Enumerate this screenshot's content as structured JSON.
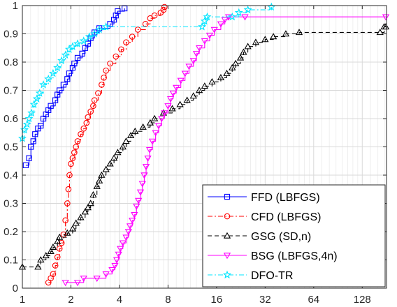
{
  "chart_data": {
    "type": "line",
    "title": "",
    "xlabel": "",
    "ylabel": "",
    "x_scale": "log2",
    "xlim": [
      1,
      181
    ],
    "ylim": [
      0,
      1
    ],
    "grid": true,
    "legend_position": "bottom-right",
    "xticks": [
      1,
      2,
      4,
      8,
      16,
      32,
      64,
      128
    ],
    "xtick_labels": [
      "1",
      "2",
      "4",
      "8",
      "16",
      "32",
      "64",
      "128"
    ],
    "yticks": [
      0,
      0.1,
      0.2,
      0.3,
      0.4,
      0.5,
      0.6,
      0.7,
      0.8,
      0.9,
      1
    ],
    "ytick_labels": [
      "0",
      "0.1",
      "0.2",
      "0.3",
      "0.4",
      "0.5",
      "0.6",
      "0.7",
      "0.8",
      "0.9",
      "1"
    ],
    "series": [
      {
        "name": "FFD (LBFGS)",
        "color": "#0000ff",
        "dash": "solid",
        "marker": "square",
        "points": [
          [
            1.05,
            0.435
          ],
          [
            1.1,
            0.46
          ],
          [
            1.13,
            0.5
          ],
          [
            1.17,
            0.52
          ],
          [
            1.2,
            0.545
          ],
          [
            1.25,
            0.565
          ],
          [
            1.3,
            0.575
          ],
          [
            1.35,
            0.6
          ],
          [
            1.4,
            0.615
          ],
          [
            1.45,
            0.63
          ],
          [
            1.5,
            0.645
          ],
          [
            1.6,
            0.665
          ],
          [
            1.65,
            0.685
          ],
          [
            1.7,
            0.7
          ],
          [
            1.8,
            0.72
          ],
          [
            1.9,
            0.74
          ],
          [
            1.95,
            0.76
          ],
          [
            2.05,
            0.78
          ],
          [
            2.1,
            0.795
          ],
          [
            2.2,
            0.815
          ],
          [
            2.35,
            0.83
          ],
          [
            2.45,
            0.85
          ],
          [
            2.55,
            0.865
          ],
          [
            2.65,
            0.885
          ],
          [
            2.8,
            0.905
          ],
          [
            3.0,
            0.92
          ],
          [
            3.5,
            0.935
          ],
          [
            3.7,
            0.95
          ],
          [
            3.8,
            0.965
          ],
          [
            3.9,
            0.98
          ],
          [
            4.3,
            0.99
          ]
        ]
      },
      {
        "name": "CFD (LBFGS)",
        "color": "#ff0000",
        "dash": "dashdot",
        "marker": "circle",
        "points": [
          [
            1.45,
            0.02
          ],
          [
            1.5,
            0.035
          ],
          [
            1.55,
            0.05
          ],
          [
            1.6,
            0.08
          ],
          [
            1.65,
            0.11
          ],
          [
            1.7,
            0.14
          ],
          [
            1.75,
            0.16
          ],
          [
            1.8,
            0.19
          ],
          [
            1.85,
            0.24
          ],
          [
            1.9,
            0.3
          ],
          [
            1.93,
            0.35
          ],
          [
            1.96,
            0.4
          ],
          [
            2.0,
            0.44
          ],
          [
            2.05,
            0.46
          ],
          [
            2.1,
            0.48
          ],
          [
            2.15,
            0.5
          ],
          [
            2.2,
            0.52
          ],
          [
            2.3,
            0.545
          ],
          [
            2.4,
            0.565
          ],
          [
            2.5,
            0.585
          ],
          [
            2.55,
            0.605
          ],
          [
            2.65,
            0.625
          ],
          [
            2.75,
            0.645
          ],
          [
            2.8,
            0.665
          ],
          [
            2.95,
            0.69
          ],
          [
            3.1,
            0.72
          ],
          [
            3.2,
            0.745
          ],
          [
            3.3,
            0.77
          ],
          [
            3.5,
            0.795
          ],
          [
            3.8,
            0.82
          ],
          [
            4.1,
            0.845
          ],
          [
            4.4,
            0.87
          ],
          [
            4.8,
            0.89
          ],
          [
            5.2,
            0.915
          ],
          [
            5.8,
            0.935
          ],
          [
            6.2,
            0.955
          ],
          [
            6.6,
            0.965
          ],
          [
            7.2,
            0.975
          ],
          [
            7.5,
            0.985
          ],
          [
            7.6,
            0.995
          ]
        ]
      },
      {
        "name": "GSG (SD,n)",
        "color": "#000000",
        "dash": "dashed",
        "marker": "triangle-up",
        "points": [
          [
            1,
            0.075
          ],
          [
            1.25,
            0.075
          ],
          [
            1.3,
            0.1
          ],
          [
            1.4,
            0.115
          ],
          [
            1.5,
            0.13
          ],
          [
            1.55,
            0.145
          ],
          [
            1.65,
            0.165
          ],
          [
            1.7,
            0.18
          ],
          [
            1.9,
            0.195
          ],
          [
            2.05,
            0.21
          ],
          [
            2.15,
            0.23
          ],
          [
            2.3,
            0.25
          ],
          [
            2.45,
            0.27
          ],
          [
            2.55,
            0.285
          ],
          [
            2.65,
            0.3
          ],
          [
            2.75,
            0.33
          ],
          [
            2.9,
            0.36
          ],
          [
            3.0,
            0.38
          ],
          [
            3.1,
            0.4
          ],
          [
            3.3,
            0.42
          ],
          [
            3.5,
            0.44
          ],
          [
            3.7,
            0.46
          ],
          [
            3.9,
            0.48
          ],
          [
            4.2,
            0.5
          ],
          [
            4.4,
            0.52
          ],
          [
            4.7,
            0.54
          ],
          [
            5.0,
            0.555
          ],
          [
            5.6,
            0.57
          ],
          [
            6.2,
            0.585
          ],
          [
            6.6,
            0.6
          ],
          [
            7.5,
            0.62
          ],
          [
            8.5,
            0.635
          ],
          [
            9.5,
            0.65
          ],
          [
            10.5,
            0.665
          ],
          [
            11.5,
            0.68
          ],
          [
            12.5,
            0.7
          ],
          [
            13.5,
            0.715
          ],
          [
            15,
            0.73
          ],
          [
            17,
            0.745
          ],
          [
            18.5,
            0.76
          ],
          [
            20,
            0.78
          ],
          [
            21,
            0.795
          ],
          [
            22.5,
            0.815
          ],
          [
            23.5,
            0.835
          ],
          [
            25,
            0.855
          ],
          [
            28,
            0.87
          ],
          [
            32,
            0.88
          ],
          [
            36,
            0.89
          ],
          [
            43,
            0.9
          ],
          [
            52,
            0.905
          ],
          [
            165,
            0.905
          ],
          [
            175,
            0.925
          ],
          [
            181,
            0.925
          ]
        ]
      },
      {
        "name": "BSG (LBFGS,4n)",
        "color": "#ff00ff",
        "dash": "solid",
        "marker": "triangle-down",
        "points": [
          [
            1.85,
            0.02
          ],
          [
            2.2,
            0.02
          ],
          [
            2.4,
            0.035
          ],
          [
            2.9,
            0.035
          ],
          [
            3.3,
            0.05
          ],
          [
            3.6,
            0.065
          ],
          [
            3.75,
            0.08
          ],
          [
            3.85,
            0.1
          ],
          [
            3.95,
            0.12
          ],
          [
            4.05,
            0.14
          ],
          [
            4.2,
            0.16
          ],
          [
            4.4,
            0.18
          ],
          [
            4.55,
            0.2
          ],
          [
            4.65,
            0.22
          ],
          [
            4.8,
            0.24
          ],
          [
            4.95,
            0.26
          ],
          [
            5.1,
            0.29
          ],
          [
            5.25,
            0.31
          ],
          [
            5.4,
            0.34
          ],
          [
            5.55,
            0.37
          ],
          [
            5.7,
            0.4
          ],
          [
            5.85,
            0.43
          ],
          [
            6.0,
            0.46
          ],
          [
            6.15,
            0.49
          ],
          [
            6.4,
            0.52
          ],
          [
            6.7,
            0.55
          ],
          [
            7.0,
            0.575
          ],
          [
            7.3,
            0.6
          ],
          [
            7.6,
            0.62
          ],
          [
            8.0,
            0.645
          ],
          [
            8.3,
            0.67
          ],
          [
            8.6,
            0.69
          ],
          [
            9.0,
            0.71
          ],
          [
            9.6,
            0.735
          ],
          [
            10.2,
            0.76
          ],
          [
            10.8,
            0.785
          ],
          [
            11.5,
            0.805
          ],
          [
            12.0,
            0.83
          ],
          [
            12.5,
            0.85
          ],
          [
            13.5,
            0.875
          ],
          [
            14.5,
            0.895
          ],
          [
            15.5,
            0.915
          ],
          [
            17,
            0.935
          ],
          [
            18,
            0.95
          ],
          [
            19,
            0.96
          ],
          [
            24,
            0.96
          ],
          [
            181,
            0.96
          ]
        ]
      },
      {
        "name": "DFO-TR",
        "color": "#00e5ff",
        "dash": "dashdot",
        "marker": "star",
        "points": [
          [
            1,
            0.53
          ],
          [
            1.03,
            0.56
          ],
          [
            1.07,
            0.58
          ],
          [
            1.1,
            0.6
          ],
          [
            1.14,
            0.62
          ],
          [
            1.18,
            0.65
          ],
          [
            1.23,
            0.67
          ],
          [
            1.28,
            0.69
          ],
          [
            1.35,
            0.72
          ],
          [
            1.45,
            0.74
          ],
          [
            1.55,
            0.76
          ],
          [
            1.65,
            0.78
          ],
          [
            1.75,
            0.805
          ],
          [
            1.85,
            0.825
          ],
          [
            1.95,
            0.845
          ],
          [
            2.05,
            0.855
          ],
          [
            2.2,
            0.865
          ],
          [
            2.4,
            0.875
          ],
          [
            2.6,
            0.89
          ],
          [
            2.8,
            0.9
          ],
          [
            3.0,
            0.915
          ],
          [
            3.3,
            0.925
          ],
          [
            13,
            0.925
          ],
          [
            13.5,
            0.945
          ],
          [
            14,
            0.96
          ],
          [
            20,
            0.96
          ],
          [
            22,
            0.975
          ],
          [
            25,
            0.985
          ],
          [
            35,
            0.995
          ]
        ]
      }
    ]
  }
}
